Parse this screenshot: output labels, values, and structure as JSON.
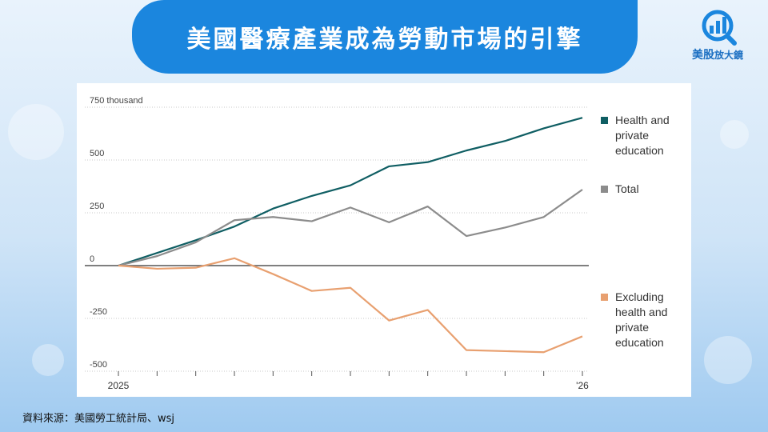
{
  "header": {
    "title": "美國醫療產業成為勞動市場的引擎"
  },
  "logo": {
    "icon": "magnifier-chart-icon",
    "name": "美股",
    "tagline": "放大鏡"
  },
  "source_note": "資料來源：美國勞工統計局、wsj",
  "chart_data": {
    "type": "line",
    "title": "",
    "xlabel": "",
    "ylabel": "",
    "x": [
      0,
      1,
      2,
      3,
      4,
      5,
      6,
      7,
      8,
      9,
      10,
      11,
      12
    ],
    "x_tick_labels": [
      {
        "x": 0,
        "label": "2025"
      },
      {
        "x": 12,
        "label": "'26"
      }
    ],
    "y_ticks": [
      750,
      500,
      250,
      0,
      -250,
      -500
    ],
    "y_tick_labels": [
      "750 thousand",
      "500",
      "250",
      "0",
      "-250",
      "-500"
    ],
    "ylim": [
      -500,
      750
    ],
    "grid": "horizontal dotted",
    "legend_position": "right",
    "series": [
      {
        "name": "Health and private education",
        "name_lines": [
          "Health and",
          "private",
          "education"
        ],
        "color": "#0f5e63",
        "values": [
          0,
          60,
          120,
          185,
          270,
          330,
          380,
          470,
          490,
          545,
          590,
          650,
          700
        ]
      },
      {
        "name": "Total",
        "name_lines": [
          "Total"
        ],
        "color": "#8c8c8c",
        "values": [
          0,
          45,
          110,
          215,
          230,
          210,
          275,
          205,
          280,
          140,
          180,
          230,
          360
        ]
      },
      {
        "name": "Excluding health and private education",
        "name_lines": [
          "Excluding",
          "health and",
          "private",
          "education"
        ],
        "color": "#e8a070",
        "values": [
          0,
          -15,
          -10,
          35,
          -40,
          -120,
          -105,
          -260,
          -210,
          -400,
          -405,
          -410,
          -335
        ]
      }
    ]
  }
}
